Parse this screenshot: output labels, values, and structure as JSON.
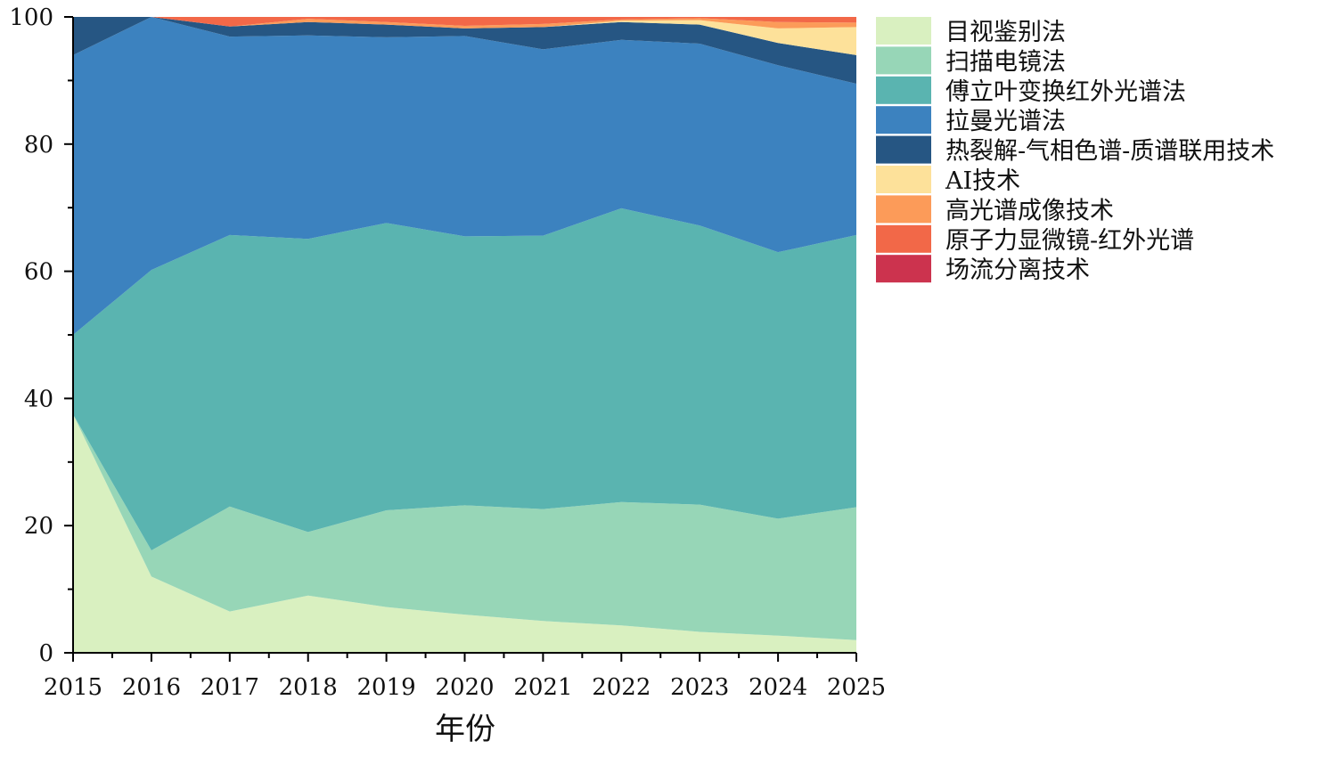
{
  "chart_data": {
    "type": "area",
    "stacked": true,
    "xlabel": "年份",
    "ylabel": "",
    "ylim": [
      0,
      100
    ],
    "yticks": [
      0,
      20,
      40,
      60,
      80,
      100
    ],
    "x": [
      "2015",
      "2016",
      "2017",
      "2018",
      "2019",
      "2020",
      "2021",
      "2022",
      "2023",
      "2024",
      "2025"
    ],
    "grid": false,
    "legend_position": "right",
    "series": [
      {
        "name": "目视鉴别法",
        "color": "#d9f0c0",
        "values": [
          37.5,
          12.0,
          6.5,
          9.0,
          7.2,
          6.0,
          5.0,
          4.3,
          3.3,
          2.7,
          2.0
        ]
      },
      {
        "name": "扫描电镜法",
        "color": "#97d6b7",
        "values": [
          0.0,
          4.1,
          16.5,
          10.0,
          15.2,
          17.2,
          17.6,
          19.4,
          20.0,
          18.4,
          20.9
        ]
      },
      {
        "name": "傅立叶变换红外光谱法",
        "color": "#5ab4b0",
        "values": [
          12.5,
          44.1,
          42.7,
          46.1,
          45.2,
          42.3,
          43.0,
          46.2,
          43.9,
          41.9,
          42.8
        ]
      },
      {
        "name": "拉曼光谱法",
        "color": "#3c82bf",
        "values": [
          44.0,
          39.8,
          31.2,
          32.0,
          29.2,
          31.5,
          29.3,
          26.5,
          28.6,
          29.4,
          23.8
        ]
      },
      {
        "name": "热裂解-气相色谱-质谱联用技术",
        "color": "#265683",
        "values": [
          6.0,
          0.0,
          1.6,
          2.1,
          2.0,
          1.2,
          3.5,
          2.8,
          3.0,
          3.5,
          4.5
        ]
      },
      {
        "name": "AI技术",
        "color": "#fde19a",
        "values": [
          0.0,
          0.0,
          0.0,
          0.0,
          0.0,
          0.0,
          0.0,
          0.2,
          0.7,
          2.3,
          4.4
        ]
      },
      {
        "name": "高光谱成像技术",
        "color": "#fc9b59",
        "values": [
          0.0,
          0.0,
          0.0,
          0.5,
          0.4,
          0.4,
          0.5,
          0.2,
          0.3,
          1.0,
          0.7
        ]
      },
      {
        "name": "原子力显微镜-红外光谱",
        "color": "#f26848",
        "values": [
          0.0,
          0.0,
          1.5,
          0.3,
          0.8,
          1.4,
          1.1,
          0.4,
          0.2,
          0.8,
          0.9
        ]
      },
      {
        "name": "场流分离技术",
        "color": "#cc334e",
        "values": [
          0.0,
          0.0,
          0.0,
          0.0,
          0.0,
          0.0,
          0.0,
          0.0,
          0.0,
          0.0,
          0.0
        ]
      }
    ]
  }
}
